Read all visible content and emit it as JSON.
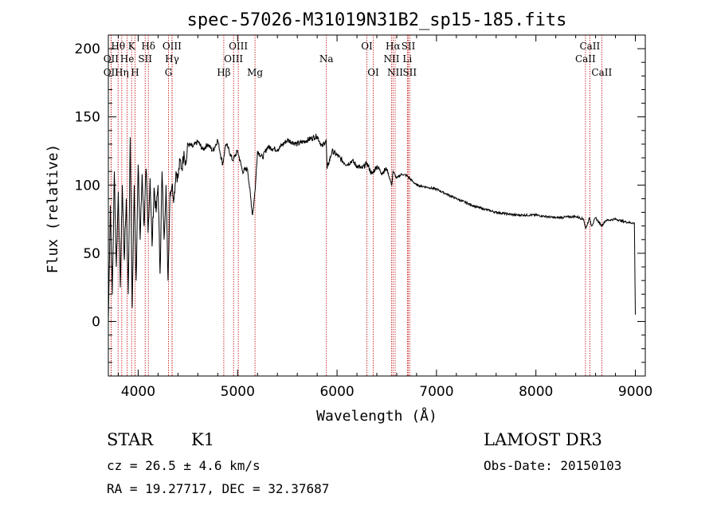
{
  "chart_data": {
    "type": "line",
    "title": "spec-57026-M31019N31B2_sp15-185.fits",
    "xlabel": "Wavelength (Å)",
    "ylabel": "Flux (relative)",
    "xlim": [
      3700,
      9100
    ],
    "ylim": [
      -40,
      210
    ],
    "xticks": [
      4000,
      5000,
      6000,
      7000,
      8000,
      9000
    ],
    "yticks": [
      0,
      50,
      100,
      150,
      200
    ],
    "series": [
      {
        "name": "flux",
        "x": [
          3700,
          3720,
          3740,
          3760,
          3780,
          3800,
          3820,
          3840,
          3860,
          3880,
          3900,
          3920,
          3940,
          3960,
          3980,
          4000,
          4020,
          4040,
          4060,
          4080,
          4100,
          4120,
          4140,
          4160,
          4180,
          4200,
          4220,
          4240,
          4260,
          4280,
          4300,
          4320,
          4340,
          4360,
          4380,
          4400,
          4420,
          4440,
          4460,
          4480,
          4500,
          4550,
          4600,
          4650,
          4700,
          4750,
          4800,
          4850,
          4860,
          4880,
          4900,
          4950,
          5000,
          5050,
          5100,
          5150,
          5170,
          5180,
          5200,
          5250,
          5300,
          5400,
          5500,
          5600,
          5700,
          5800,
          5850,
          5890,
          5900,
          5950,
          6000,
          6050,
          6100,
          6150,
          6200,
          6250,
          6300,
          6350,
          6400,
          6450,
          6500,
          6550,
          6563,
          6600,
          6650,
          6700,
          6800,
          7000,
          7200,
          7400,
          7600,
          7800,
          8000,
          8200,
          8400,
          8480,
          8500,
          8540,
          8560,
          8600,
          8662,
          8700,
          8800,
          8900,
          8990,
          9000
        ],
        "values": [
          0,
          85,
          20,
          110,
          40,
          95,
          25,
          100,
          45,
          90,
          20,
          135,
          10,
          100,
          30,
          115,
          60,
          108,
          70,
          112,
          65,
          105,
          55,
          98,
          80,
          100,
          35,
          110,
          60,
          100,
          30,
          95,
          100,
          90,
          110,
          105,
          118,
          112,
          125,
          115,
          130,
          128,
          132,
          126,
          130,
          125,
          133,
          115,
          120,
          130,
          128,
          118,
          125,
          110,
          112,
          78,
          92,
          100,
          125,
          120,
          128,
          126,
          133,
          130,
          133,
          136,
          128,
          133,
          112,
          125,
          122,
          118,
          115,
          118,
          114,
          112,
          116,
          108,
          114,
          109,
          112,
          100,
          110,
          105,
          108,
          107,
          100,
          97,
          90,
          84,
          80,
          78,
          78,
          76,
          77,
          75,
          68,
          76,
          70,
          76,
          70,
          74,
          75,
          73,
          72,
          5
        ]
      }
    ],
    "lines": [
      {
        "label": "Hθ",
        "wave": 3798,
        "row": 0
      },
      {
        "label": "OII",
        "wave": 3727,
        "row": 1
      },
      {
        "label": "OII",
        "wave": 3727,
        "row": 2
      },
      {
        "label": "Hη",
        "wave": 3835,
        "row": 2
      },
      {
        "label": "He",
        "wave": 3889,
        "row": 1
      },
      {
        "label": "K",
        "wave": 3934,
        "row": 0
      },
      {
        "label": "H",
        "wave": 3968,
        "row": 2
      },
      {
        "label": "SII",
        "wave": 4070,
        "row": 1
      },
      {
        "label": "Hδ",
        "wave": 4102,
        "row": 0
      },
      {
        "label": "G",
        "wave": 4305,
        "row": 2
      },
      {
        "label": "OIII",
        "wave": 4340,
        "row": 0
      },
      {
        "label": "Hγ",
        "wave": 4341,
        "row": 1
      },
      {
        "label": "Hβ",
        "wave": 4861,
        "row": 2
      },
      {
        "label": "OIII",
        "wave": 5007,
        "row": 0
      },
      {
        "label": "OIII",
        "wave": 4959,
        "row": 1
      },
      {
        "label": "Mg",
        "wave": 5175,
        "row": 2
      },
      {
        "label": "Na",
        "wave": 5893,
        "row": 1
      },
      {
        "label": "OI",
        "wave": 6300,
        "row": 0
      },
      {
        "label": "OI",
        "wave": 6364,
        "row": 2
      },
      {
        "label": "Hα",
        "wave": 6563,
        "row": 0
      },
      {
        "label": "NII",
        "wave": 6548,
        "row": 1
      },
      {
        "label": "NII",
        "wave": 6584,
        "row": 2
      },
      {
        "label": "SII",
        "wave": 6717,
        "row": 0
      },
      {
        "label": "Li",
        "wave": 6707,
        "row": 1
      },
      {
        "label": "SII",
        "wave": 6731,
        "row": 2
      },
      {
        "label": "CaII",
        "wave": 8542,
        "row": 0
      },
      {
        "label": "CaII",
        "wave": 8498,
        "row": 1
      },
      {
        "label": "CaII",
        "wave": 8662,
        "row": 2
      }
    ],
    "colors": {
      "spectrum": "#000000",
      "line_marker": "#c00000",
      "axis": "#000000"
    }
  },
  "info": {
    "class_label": "STAR",
    "subclass": "K1",
    "survey": "LAMOST DR3",
    "cz": "cz = 26.5 ± 4.6 km/s",
    "obs_date": "Obs-Date: 20150103",
    "coords": "RA =  19.27717, DEC =  32.37687"
  }
}
